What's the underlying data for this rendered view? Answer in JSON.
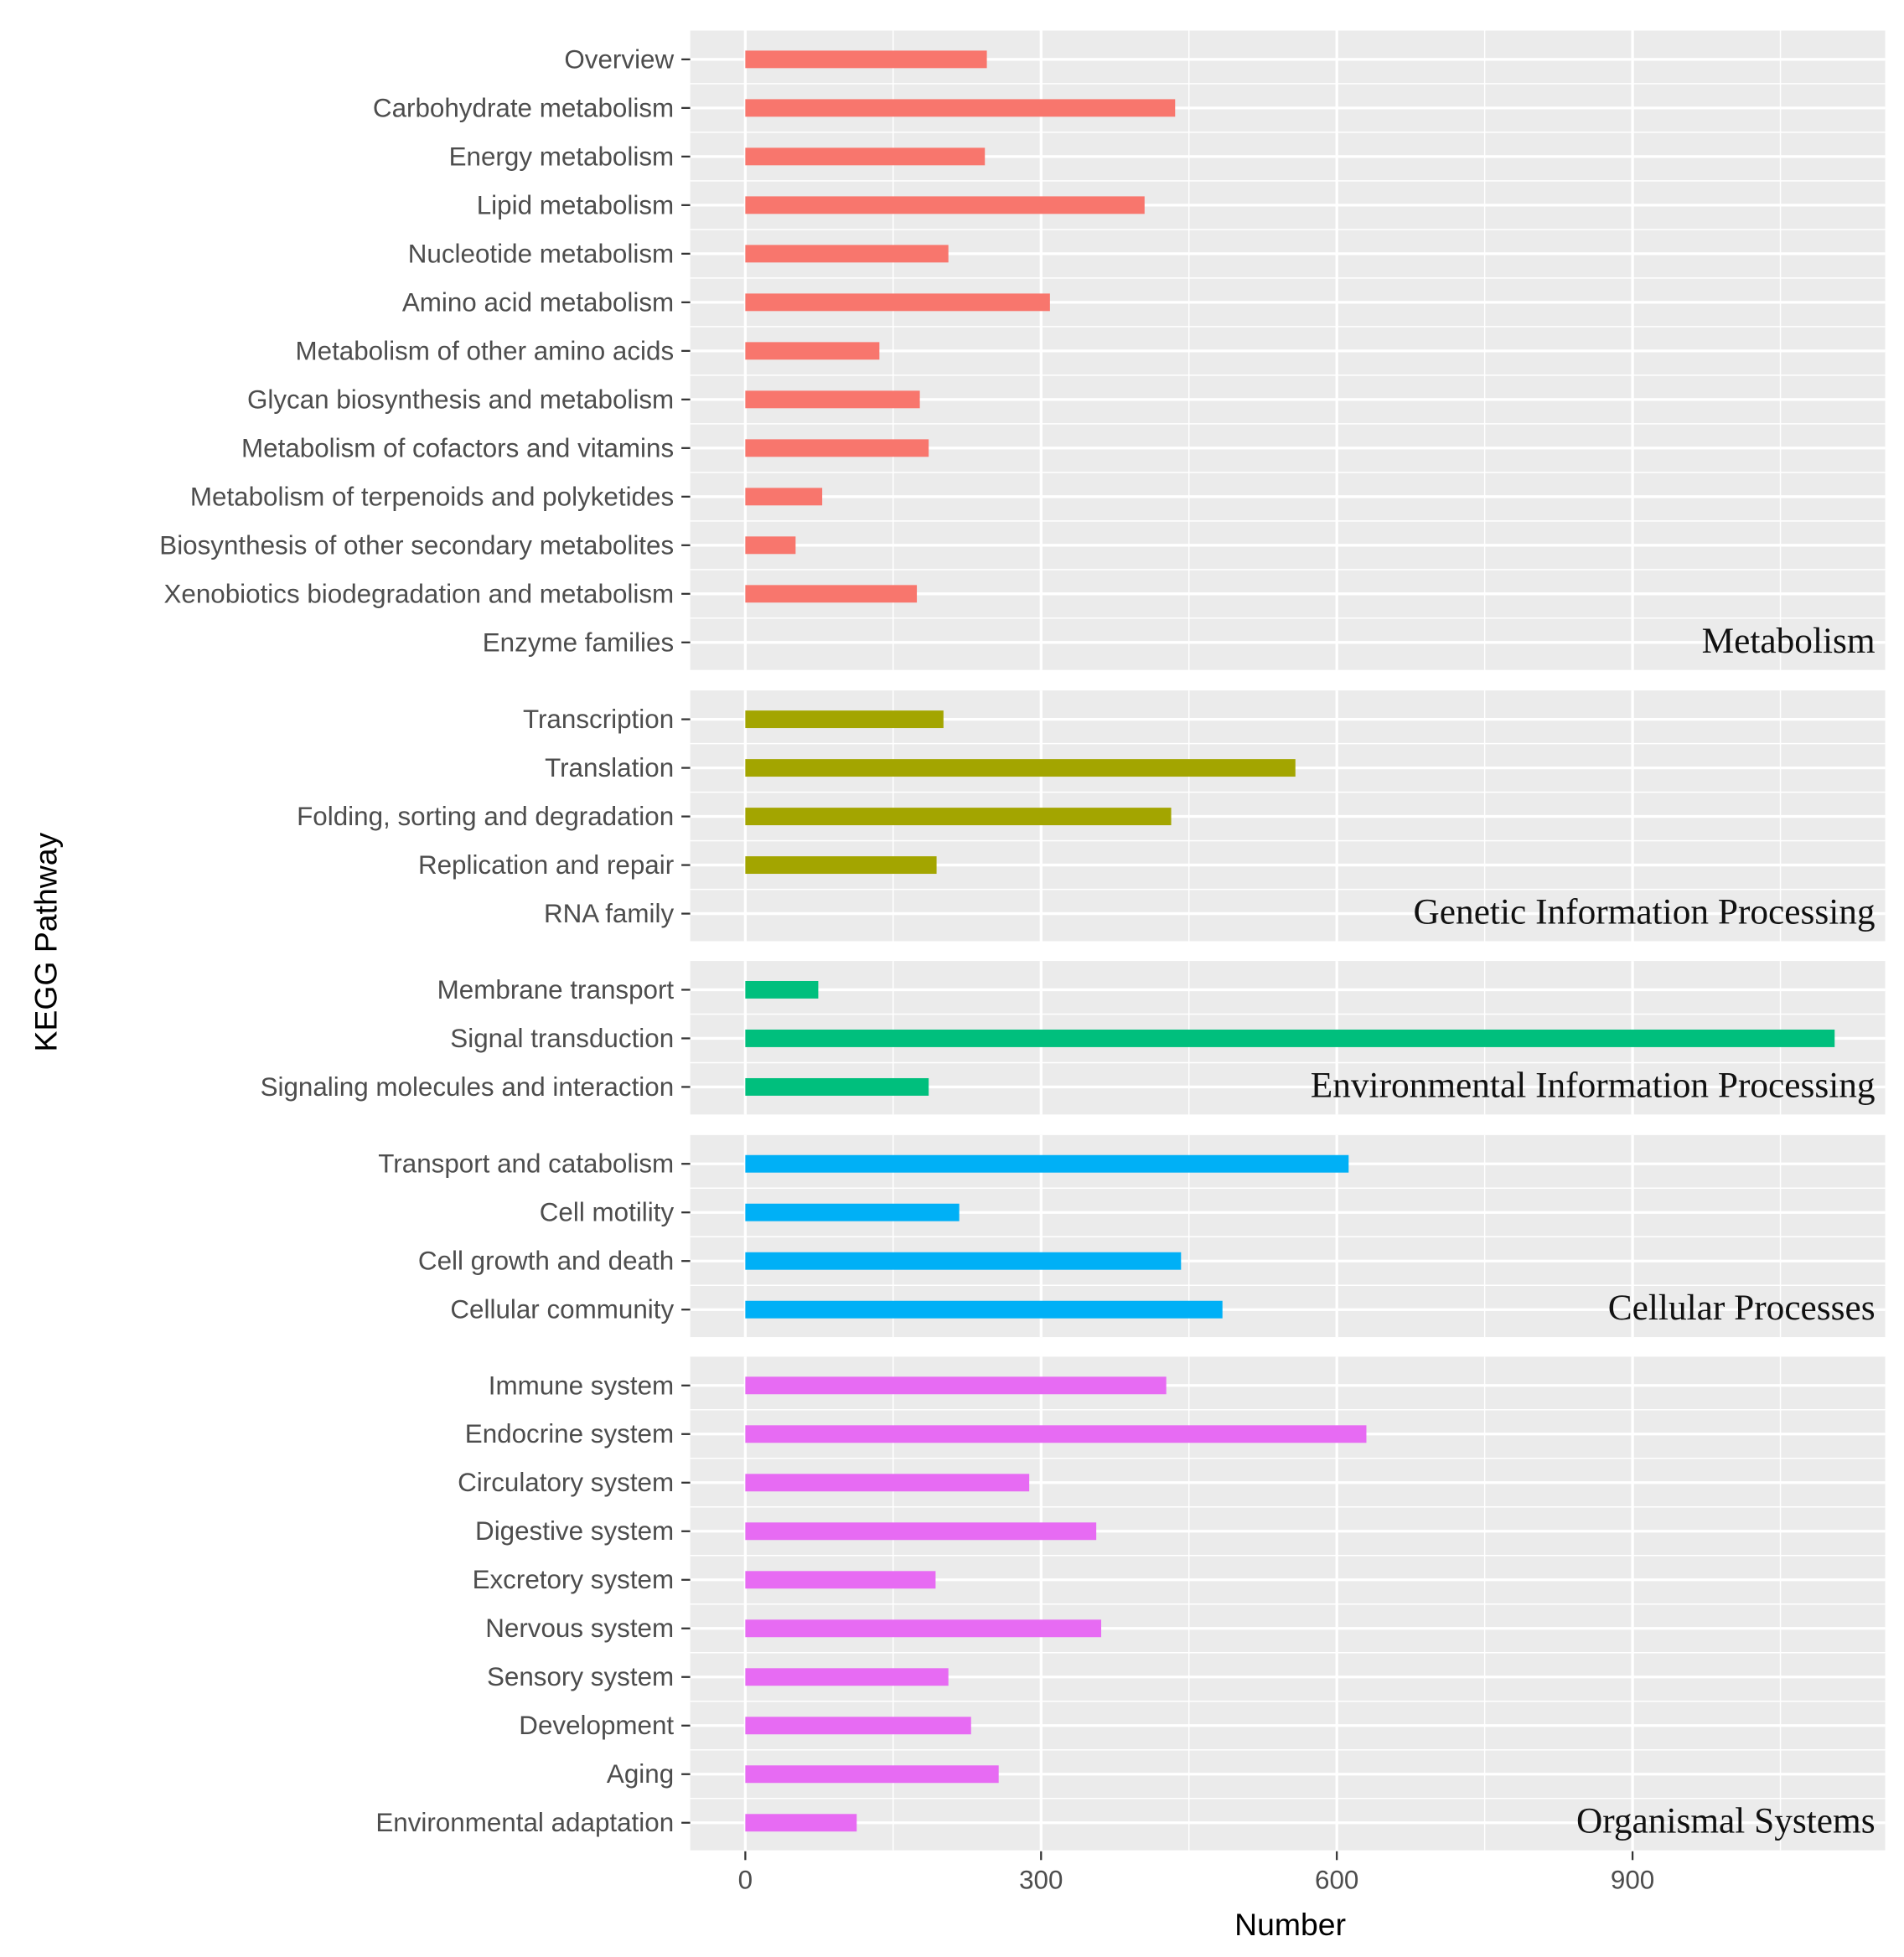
{
  "chart_data": {
    "type": "bar",
    "orientation": "horizontal",
    "title": "",
    "xlabel": "Number",
    "ylabel": "KEGG Pathway",
    "xlim": [
      -56,
      1156
    ],
    "xticks": [
      0,
      300,
      600,
      900
    ],
    "xtick_labels": [
      "0",
      "300",
      "600",
      "900"
    ],
    "grid": true,
    "legend": "none",
    "facets": [
      {
        "name": "Metabolism",
        "color": "#F8766D",
        "categories": [
          "Overview",
          "Carbohydrate metabolism",
          "Energy metabolism",
          "Lipid metabolism",
          "Nucleotide metabolism",
          "Amino acid metabolism",
          "Metabolism of other amino acids",
          "Glycan biosynthesis and metabolism",
          "Metabolism of cofactors and vitamins",
          "Metabolism of terpenoids and polyketides",
          "Biosynthesis of other secondary metabolites",
          "Xenobiotics biodegradation and metabolism",
          "Enzyme families"
        ],
        "values": [
          245,
          436,
          243,
          405,
          206,
          309,
          136,
          177,
          186,
          78,
          51,
          174,
          0
        ]
      },
      {
        "name": "Genetic Information Processing",
        "color": "#A3A500",
        "categories": [
          "Transcription",
          "Translation",
          "Folding, sorting and degradation",
          "Replication and repair",
          "RNA family"
        ],
        "values": [
          201,
          558,
          432,
          194,
          0
        ]
      },
      {
        "name": "Environmental Information Processing",
        "color": "#00BF7D",
        "categories": [
          "Membrane transport",
          "Signal transduction",
          "Signaling molecules and interaction"
        ],
        "values": [
          74,
          1105,
          186
        ]
      },
      {
        "name": "Cellular Processes",
        "color": "#00B0F6",
        "categories": [
          "Transport and catabolism",
          "Cell motility",
          "Cell growth and death",
          "Cellular community"
        ],
        "values": [
          612,
          217,
          442,
          484
        ]
      },
      {
        "name": "Organismal Systems",
        "color": "#E76BF3",
        "categories": [
          "Immune system",
          "Endocrine system",
          "Circulatory system",
          "Digestive system",
          "Excretory system",
          "Nervous system",
          "Sensory system",
          "Development",
          "Aging",
          "Environmental adaptation"
        ],
        "values": [
          427,
          630,
          288,
          356,
          193,
          361,
          206,
          229,
          257,
          113
        ]
      }
    ]
  }
}
